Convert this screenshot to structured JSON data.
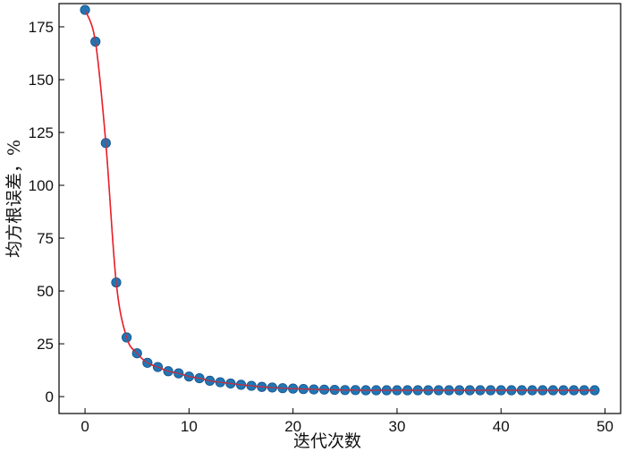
{
  "chart_data": {
    "type": "line",
    "title": "",
    "xlabel": "迭代次数",
    "ylabel": "均方根误差，%",
    "xlim": [
      -2.5,
      51.5
    ],
    "ylim": [
      -8,
      186
    ],
    "xticks": [
      0,
      10,
      20,
      30,
      40,
      50
    ],
    "yticks": [
      0,
      25,
      50,
      75,
      100,
      125,
      150,
      175
    ],
    "grid": false,
    "legend": false,
    "colors": {
      "line": "#e8202a",
      "marker": "#1f77b4",
      "marker_edge": "#1a4f8a"
    },
    "series": [
      {
        "x": [
          0,
          1,
          2,
          3,
          4,
          5,
          6,
          7,
          8,
          9,
          10,
          11,
          12,
          13,
          14,
          15,
          16,
          17,
          18,
          19,
          20,
          21,
          22,
          23,
          24,
          25,
          26,
          27,
          28,
          29,
          30,
          31,
          32,
          33,
          34,
          35,
          36,
          37,
          38,
          39,
          40,
          41,
          42,
          43,
          44,
          45,
          46,
          47,
          48,
          49
        ],
        "values": [
          183,
          168,
          120,
          54,
          28,
          20.5,
          16,
          14,
          12,
          11,
          9.5,
          8.7,
          7.5,
          6.8,
          6.2,
          5.6,
          5.1,
          4.6,
          4.3,
          4.0,
          3.8,
          3.6,
          3.4,
          3.3,
          3.2,
          3.1,
          3.1,
          3.0,
          3.0,
          3.0,
          3.0,
          3.0,
          3.0,
          3.0,
          3.0,
          3.0,
          3.0,
          3.0,
          3.0,
          3.0,
          3.0,
          3.0,
          3.0,
          3.0,
          3.0,
          3.0,
          3.0,
          3.0,
          3.0,
          3.0
        ]
      }
    ]
  }
}
